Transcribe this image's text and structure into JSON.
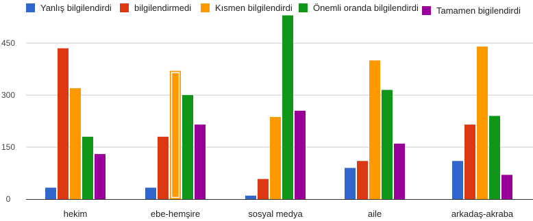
{
  "chart_data": {
    "type": "bar",
    "categories": [
      "hekim",
      "ebe-hemşire",
      "sosyal medya",
      "aile",
      "arkadaş-akraba"
    ],
    "series": [
      {
        "name": "Yanlış bilgilendirdi",
        "color": "#3366cc",
        "values": [
          33,
          33,
          10,
          90,
          110
        ]
      },
      {
        "name": "bilgilendirmedi",
        "color": "#dc3912",
        "values": [
          435,
          180,
          58,
          110,
          215
        ]
      },
      {
        "name": "Kısmen bilgilendirdi",
        "color": "#ff9900",
        "values": [
          320,
          370,
          237,
          400,
          440
        ]
      },
      {
        "name": "Önemli oranda bilgilendirdi",
        "color": "#109618",
        "values": [
          180,
          300,
          530,
          315,
          240
        ]
      },
      {
        "name": "Tamamen bigilendirdi",
        "color": "#990099",
        "values": [
          130,
          215,
          255,
          160,
          70
        ]
      }
    ],
    "y_ticks": [
      "0",
      "150",
      "300",
      "450"
    ],
    "ylim": [
      0,
      550
    ],
    "grid": true,
    "legend_position": "top"
  }
}
